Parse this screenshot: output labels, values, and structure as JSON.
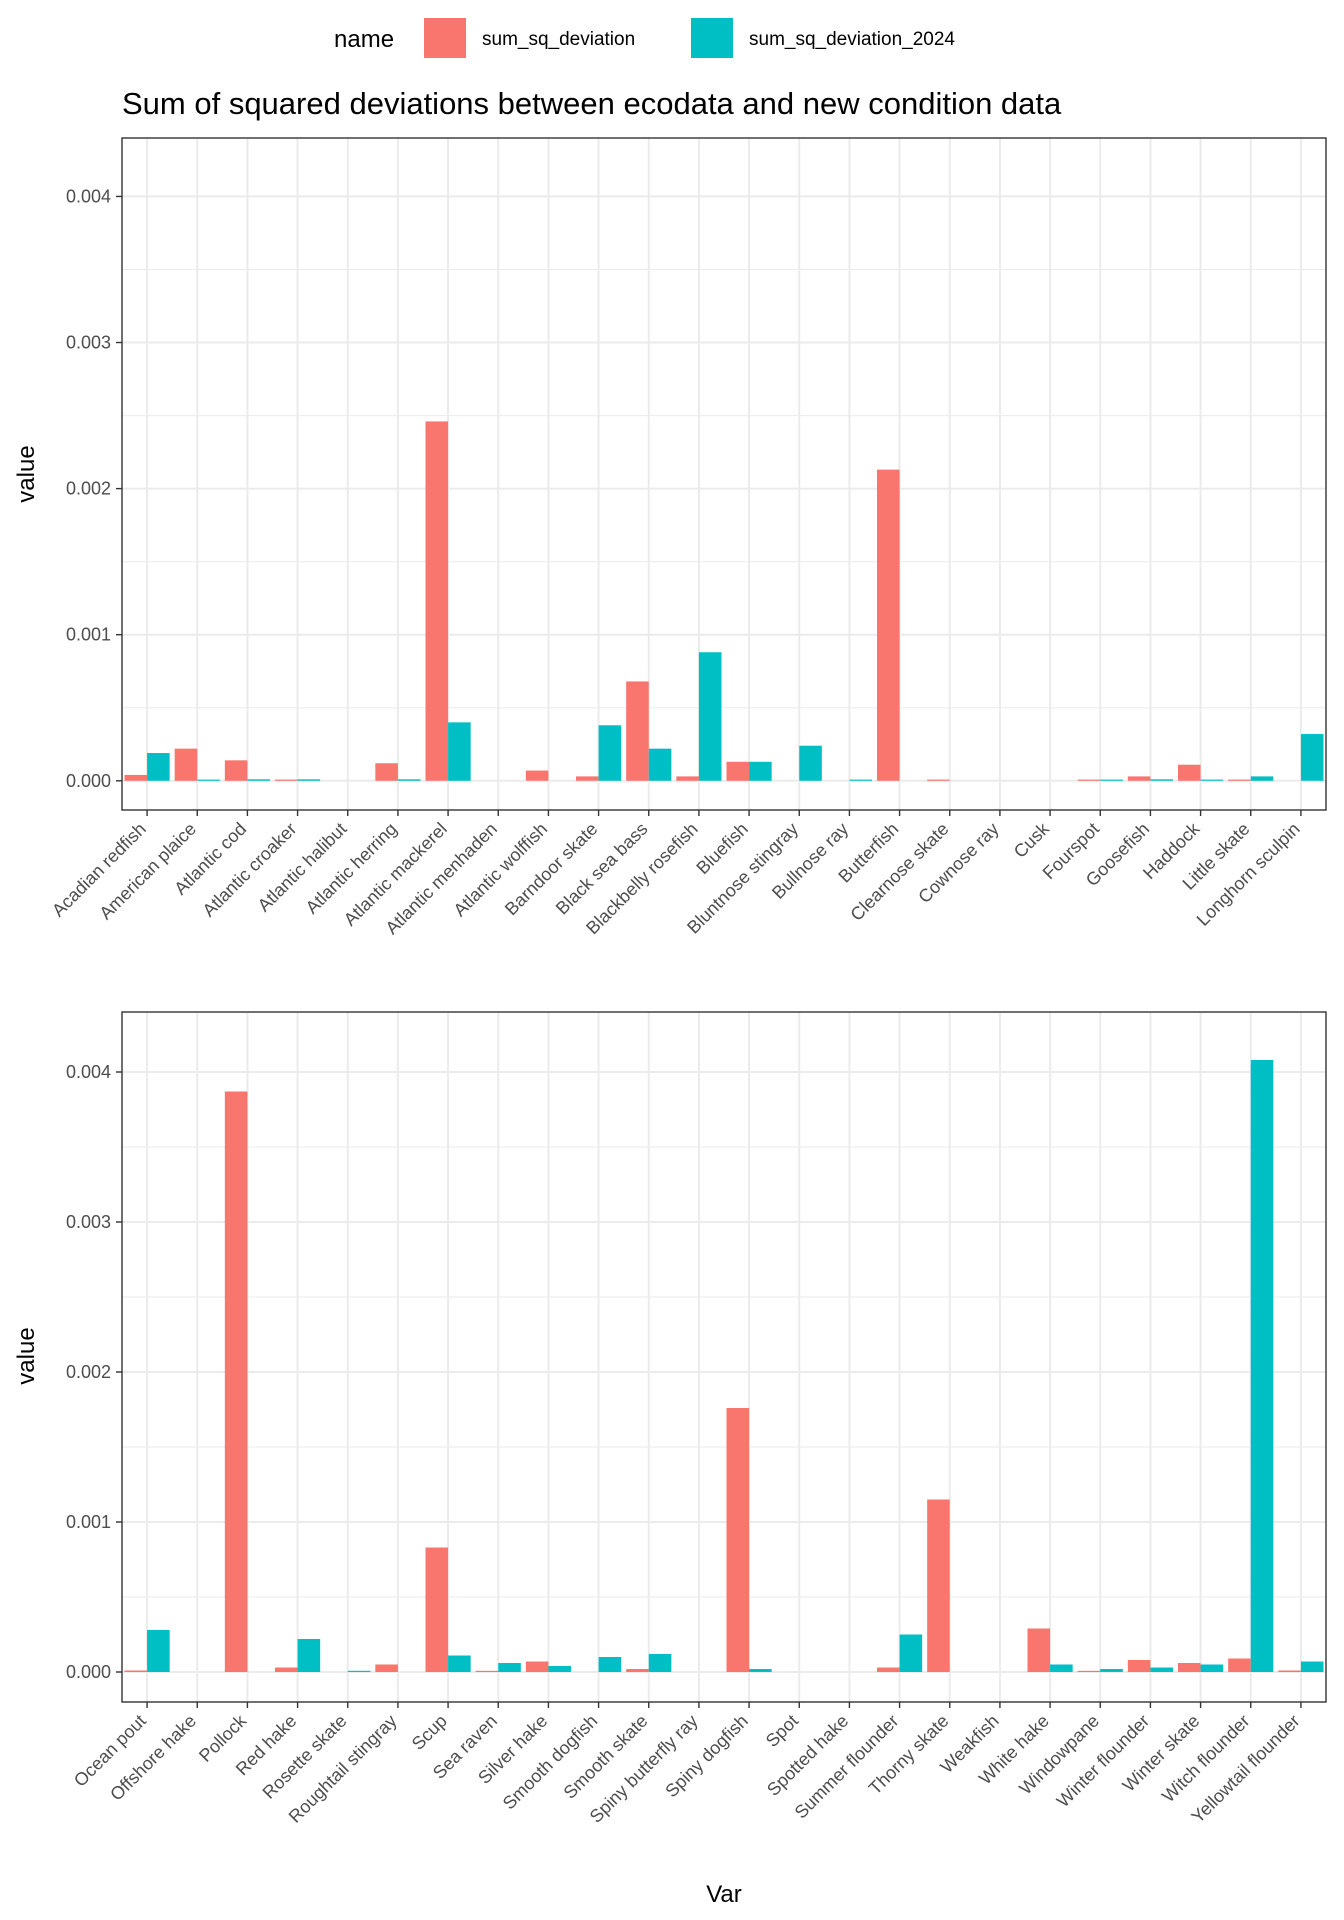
{
  "legend": {
    "title": "name",
    "entries": [
      {
        "label": "sum_sq_deviation",
        "color": "#F8766D"
      },
      {
        "label": "sum_sq_deviation_2024",
        "color": "#00BFC4"
      }
    ]
  },
  "title": "Sum of squared deviations between ecodata and new condition data",
  "chart_data": [
    {
      "type": "bar",
      "title": "Sum of squared deviations between ecodata and new condition data",
      "xlabel": "",
      "ylabel": "value",
      "ylim": [
        -0.0002,
        0.0044
      ],
      "yticks": [
        0,
        0.001,
        0.002,
        0.003,
        0.004
      ],
      "ytick_labels": [
        "0.000",
        "0.001",
        "0.002",
        "0.003",
        "0.004"
      ],
      "grid": true,
      "legend_position": "top",
      "categories": [
        "Acadian redfish",
        "American plaice",
        "Atlantic cod",
        "Atlantic croaker",
        "Atlantic halibut",
        "Atlantic herring",
        "Atlantic mackerel",
        "Atlantic menhaden",
        "Atlantic wolffish",
        "Barndoor skate",
        "Black sea bass",
        "Blackbelly rosefish",
        "Bluefish",
        "Bluntnose stingray",
        "Bullnose ray",
        "Butterfish",
        "Clearnose skate",
        "Cownose ray",
        "Cusk",
        "Fourspot",
        "Goosefish",
        "Haddock",
        "Little skate",
        "Longhorn sculpin"
      ],
      "series": [
        {
          "name": "sum_sq_deviation",
          "color": "#F8766D",
          "values": [
            4e-05,
            0.00022,
            0.00014,
            5e-06,
            null,
            0.00012,
            0.00246,
            null,
            7e-05,
            3e-05,
            0.00068,
            3e-05,
            0.00013,
            null,
            null,
            0.00213,
            5e-06,
            null,
            null,
            5e-06,
            3e-05,
            0.00011,
            5e-06,
            null
          ]
        },
        {
          "name": "sum_sq_deviation_2024",
          "color": "#00BFC4",
          "values": [
            0.00019,
            5e-06,
            1e-05,
            1e-05,
            null,
            1e-05,
            0.0004,
            null,
            null,
            0.00038,
            0.00022,
            0.00088,
            0.00013,
            0.00024,
            5e-06,
            null,
            null,
            null,
            null,
            5e-06,
            1e-05,
            5e-06,
            3e-05,
            0.00032
          ]
        }
      ]
    },
    {
      "type": "bar",
      "xlabel": "Var",
      "ylabel": "value",
      "ylim": [
        -0.0002,
        0.0044
      ],
      "yticks": [
        0,
        0.001,
        0.002,
        0.003,
        0.004
      ],
      "ytick_labels": [
        "0.000",
        "0.001",
        "0.002",
        "0.003",
        "0.004"
      ],
      "grid": true,
      "categories": [
        "Ocean pout",
        "Offshore hake",
        "Pollock",
        "Red hake",
        "Rosette skate",
        "Roughtail stingray",
        "Scup",
        "Sea raven",
        "Silver hake",
        "Smooth dogfish",
        "Smooth skate",
        "Spiny butterfly ray",
        "Spiny dogfish",
        "Spot",
        "Spotted hake",
        "Summer flounder",
        "Thorny skate",
        "Weakfish",
        "White hake",
        "Windowpane",
        "Winter flounder",
        "Winter skate",
        "Witch flounder",
        "Yellowtail flounder"
      ],
      "series": [
        {
          "name": "sum_sq_deviation",
          "color": "#F8766D",
          "values": [
            1e-05,
            null,
            0.00387,
            3e-05,
            null,
            5e-05,
            0.00083,
            5e-06,
            7e-05,
            null,
            2e-05,
            null,
            0.00176,
            null,
            null,
            3e-05,
            0.00115,
            null,
            0.00029,
            5e-06,
            8e-05,
            6e-05,
            9e-05,
            1e-05
          ]
        },
        {
          "name": "sum_sq_deviation_2024",
          "color": "#00BFC4",
          "values": [
            0.00028,
            null,
            null,
            0.00022,
            5e-06,
            null,
            0.00011,
            6e-05,
            4e-05,
            0.0001,
            0.00012,
            null,
            2e-05,
            null,
            null,
            0.00025,
            null,
            null,
            5e-05,
            2e-05,
            3e-05,
            5e-05,
            0.00408,
            7e-05
          ]
        }
      ]
    }
  ]
}
